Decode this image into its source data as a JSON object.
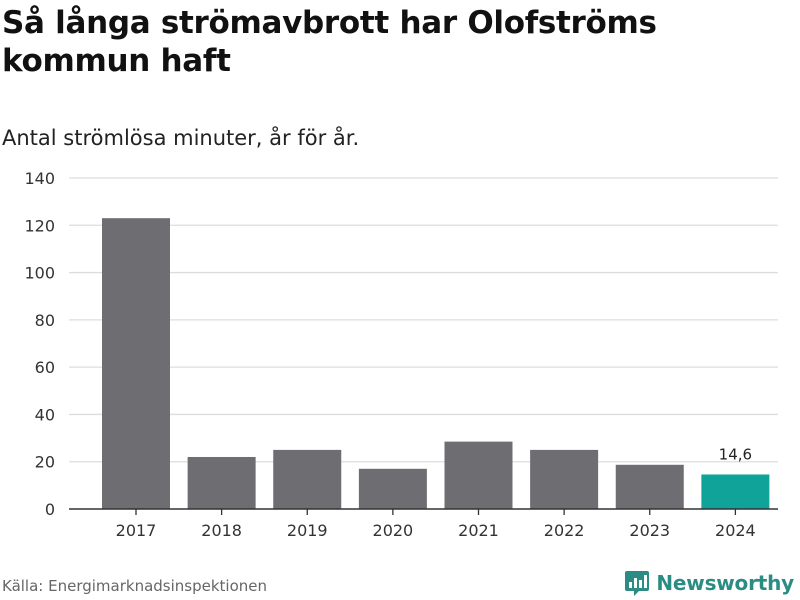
{
  "title": "Så långa strömavbrott har Olofströms kommun haft",
  "subtitle": "Antal strömlösa minuter, år för år.",
  "source": "Källa: Energimarknadsinspektionen",
  "brand": "Newsworthy",
  "colors": {
    "bar": "#6d6d72",
    "highlight": "#0fa39a",
    "grid": "#dddddd",
    "axis": "#333333",
    "brand": "#2a8c82"
  },
  "chart_data": {
    "type": "bar",
    "title": "Så långa strömavbrott har Olofströms kommun haft",
    "subtitle": "Antal strömlösa minuter, år för år.",
    "xlabel": "",
    "ylabel": "",
    "categories": [
      "2017",
      "2018",
      "2019",
      "2020",
      "2021",
      "2022",
      "2023",
      "2024"
    ],
    "values": [
      123,
      22,
      25,
      17,
      28.5,
      25,
      18.7,
      14.6
    ],
    "highlight_index": 7,
    "annotations": [
      {
        "category": "2024",
        "text": "14,6"
      }
    ],
    "ylim": [
      0,
      140
    ],
    "yticks": [
      0,
      20,
      40,
      60,
      80,
      100,
      120,
      140
    ],
    "grid": true,
    "legend": "none"
  }
}
